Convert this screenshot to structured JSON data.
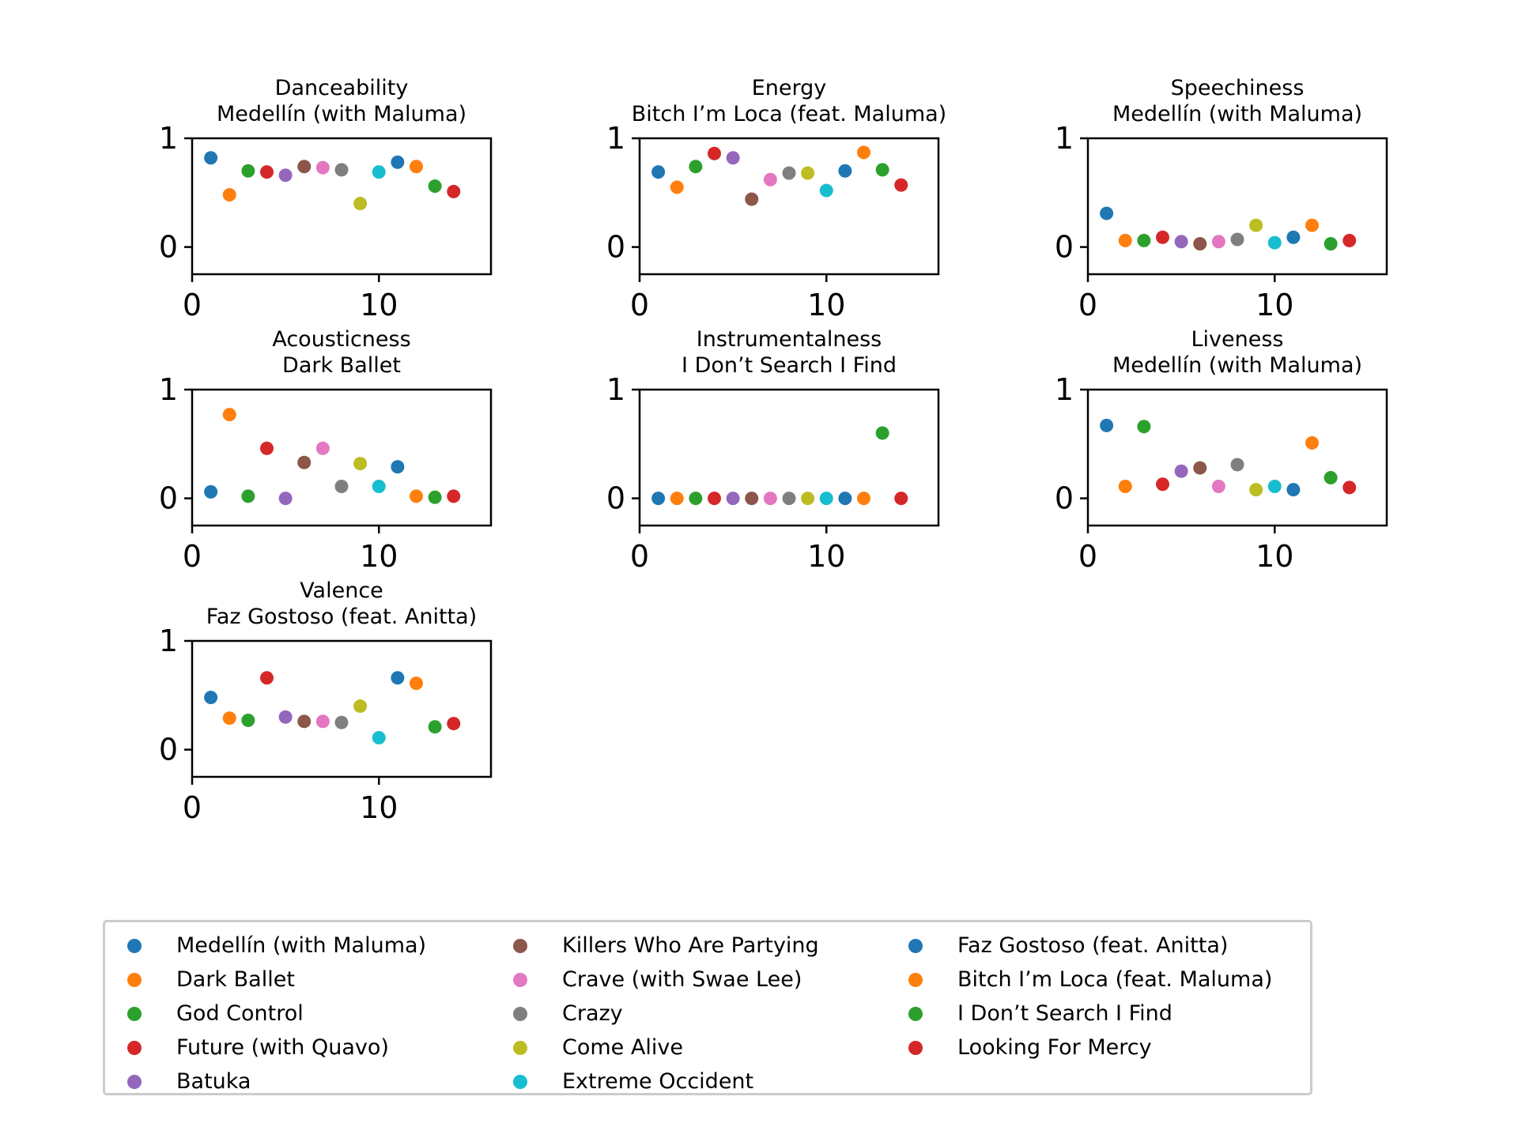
{
  "songs": [
    {
      "name": "Medellín (with Maluma)",
      "color": "#1f77b4"
    },
    {
      "name": "Dark Ballet",
      "color": "#ff7f0e"
    },
    {
      "name": "God Control",
      "color": "#2ca02c"
    },
    {
      "name": "Future (with Quavo)",
      "color": "#d62728"
    },
    {
      "name": "Batuka",
      "color": "#9467bd"
    },
    {
      "name": "Killers Who Are Partying",
      "color": "#8c564b"
    },
    {
      "name": "Crave (with Swae Lee)",
      "color": "#e377c2"
    },
    {
      "name": "Crazy",
      "color": "#7f7f7f"
    },
    {
      "name": "Come Alive",
      "color": "#bcbd22"
    },
    {
      "name": "Extreme Occident",
      "color": "#17becf"
    },
    {
      "name": "Faz Gostoso (feat. Anitta)",
      "color": "#1f77b4"
    },
    {
      "name": "Bitch I’m Loca (feat. Maluma)",
      "color": "#ff7f0e"
    },
    {
      "name": "I Don’t Search I Find",
      "color": "#2ca02c"
    },
    {
      "name": "Looking For Mercy",
      "color": "#d62728"
    }
  ],
  "chart_data": [
    {
      "type": "scatter",
      "title_line1": "Danceability",
      "title_line2": "Medellín (with Maluma)",
      "x": [
        1,
        2,
        3,
        4,
        5,
        6,
        7,
        8,
        9,
        10,
        11,
        12,
        13,
        14
      ],
      "y": [
        0.82,
        0.48,
        0.7,
        0.69,
        0.66,
        0.74,
        0.73,
        0.71,
        0.4,
        0.69,
        0.78,
        0.74,
        0.56,
        0.51
      ],
      "xlim": [
        0,
        16
      ],
      "ylim": [
        -0.25,
        1.0
      ],
      "xticks": [
        0,
        10
      ],
      "yticks": [
        0,
        1
      ]
    },
    {
      "type": "scatter",
      "title_line1": "Energy",
      "title_line2": "Bitch I’m Loca (feat. Maluma)",
      "x": [
        1,
        2,
        3,
        4,
        5,
        6,
        7,
        8,
        9,
        10,
        11,
        12,
        13,
        14
      ],
      "y": [
        0.69,
        0.55,
        0.74,
        0.86,
        0.82,
        0.44,
        0.62,
        0.68,
        0.68,
        0.52,
        0.7,
        0.87,
        0.71,
        0.57
      ],
      "xlim": [
        0,
        16
      ],
      "ylim": [
        -0.25,
        1.0
      ],
      "xticks": [
        0,
        10
      ],
      "yticks": [
        0,
        1
      ]
    },
    {
      "type": "scatter",
      "title_line1": "Speechiness",
      "title_line2": "Medellín (with Maluma)",
      "x": [
        1,
        2,
        3,
        4,
        5,
        6,
        7,
        8,
        9,
        10,
        11,
        12,
        13,
        14
      ],
      "y": [
        0.31,
        0.06,
        0.06,
        0.09,
        0.05,
        0.03,
        0.05,
        0.07,
        0.2,
        0.04,
        0.09,
        0.2,
        0.03,
        0.06
      ],
      "xlim": [
        0,
        16
      ],
      "ylim": [
        -0.25,
        1.0
      ],
      "xticks": [
        0,
        10
      ],
      "yticks": [
        0,
        1
      ]
    },
    {
      "type": "scatter",
      "title_line1": "Acousticness",
      "title_line2": "Dark Ballet",
      "x": [
        1,
        2,
        3,
        4,
        5,
        6,
        7,
        8,
        9,
        10,
        11,
        12,
        13,
        14
      ],
      "y": [
        0.06,
        0.77,
        0.02,
        0.46,
        0.0,
        0.33,
        0.46,
        0.11,
        0.32,
        0.11,
        0.29,
        0.02,
        0.01,
        0.02
      ],
      "xlim": [
        0,
        16
      ],
      "ylim": [
        -0.25,
        1.0
      ],
      "xticks": [
        0,
        10
      ],
      "yticks": [
        0,
        1
      ]
    },
    {
      "type": "scatter",
      "title_line1": "Instrumentalness",
      "title_line2": "I Don’t Search I Find",
      "x": [
        1,
        2,
        3,
        4,
        5,
        6,
        7,
        8,
        9,
        10,
        11,
        12,
        13,
        14
      ],
      "y": [
        0.0,
        0.0,
        0.0,
        0.0,
        0.0,
        0.0,
        0.0,
        0.0,
        0.0,
        0.0,
        0.0,
        0.0,
        0.6,
        0.0
      ],
      "xlim": [
        0,
        16
      ],
      "ylim": [
        -0.25,
        1.0
      ],
      "xticks": [
        0,
        10
      ],
      "yticks": [
        0,
        1
      ]
    },
    {
      "type": "scatter",
      "title_line1": "Liveness",
      "title_line2": "Medellín (with Maluma)",
      "x": [
        1,
        2,
        3,
        4,
        5,
        6,
        7,
        8,
        9,
        10,
        11,
        12,
        13,
        14
      ],
      "y": [
        0.67,
        0.11,
        0.66,
        0.13,
        0.25,
        0.28,
        0.11,
        0.31,
        0.08,
        0.11,
        0.08,
        0.51,
        0.19,
        0.1
      ],
      "xlim": [
        0,
        16
      ],
      "ylim": [
        -0.25,
        1.0
      ],
      "xticks": [
        0,
        10
      ],
      "yticks": [
        0,
        1
      ]
    },
    {
      "type": "scatter",
      "title_line1": "Valence",
      "title_line2": "Faz Gostoso (feat. Anitta)",
      "x": [
        1,
        2,
        3,
        4,
        5,
        6,
        7,
        8,
        9,
        10,
        11,
        12,
        13,
        14
      ],
      "y": [
        0.48,
        0.29,
        0.27,
        0.66,
        0.3,
        0.26,
        0.26,
        0.25,
        0.4,
        0.11,
        0.66,
        0.61,
        0.21,
        0.24
      ],
      "xlim": [
        0,
        16
      ],
      "ylim": [
        -0.25,
        1.0
      ],
      "xticks": [
        0,
        10
      ],
      "yticks": [
        0,
        1
      ]
    }
  ]
}
